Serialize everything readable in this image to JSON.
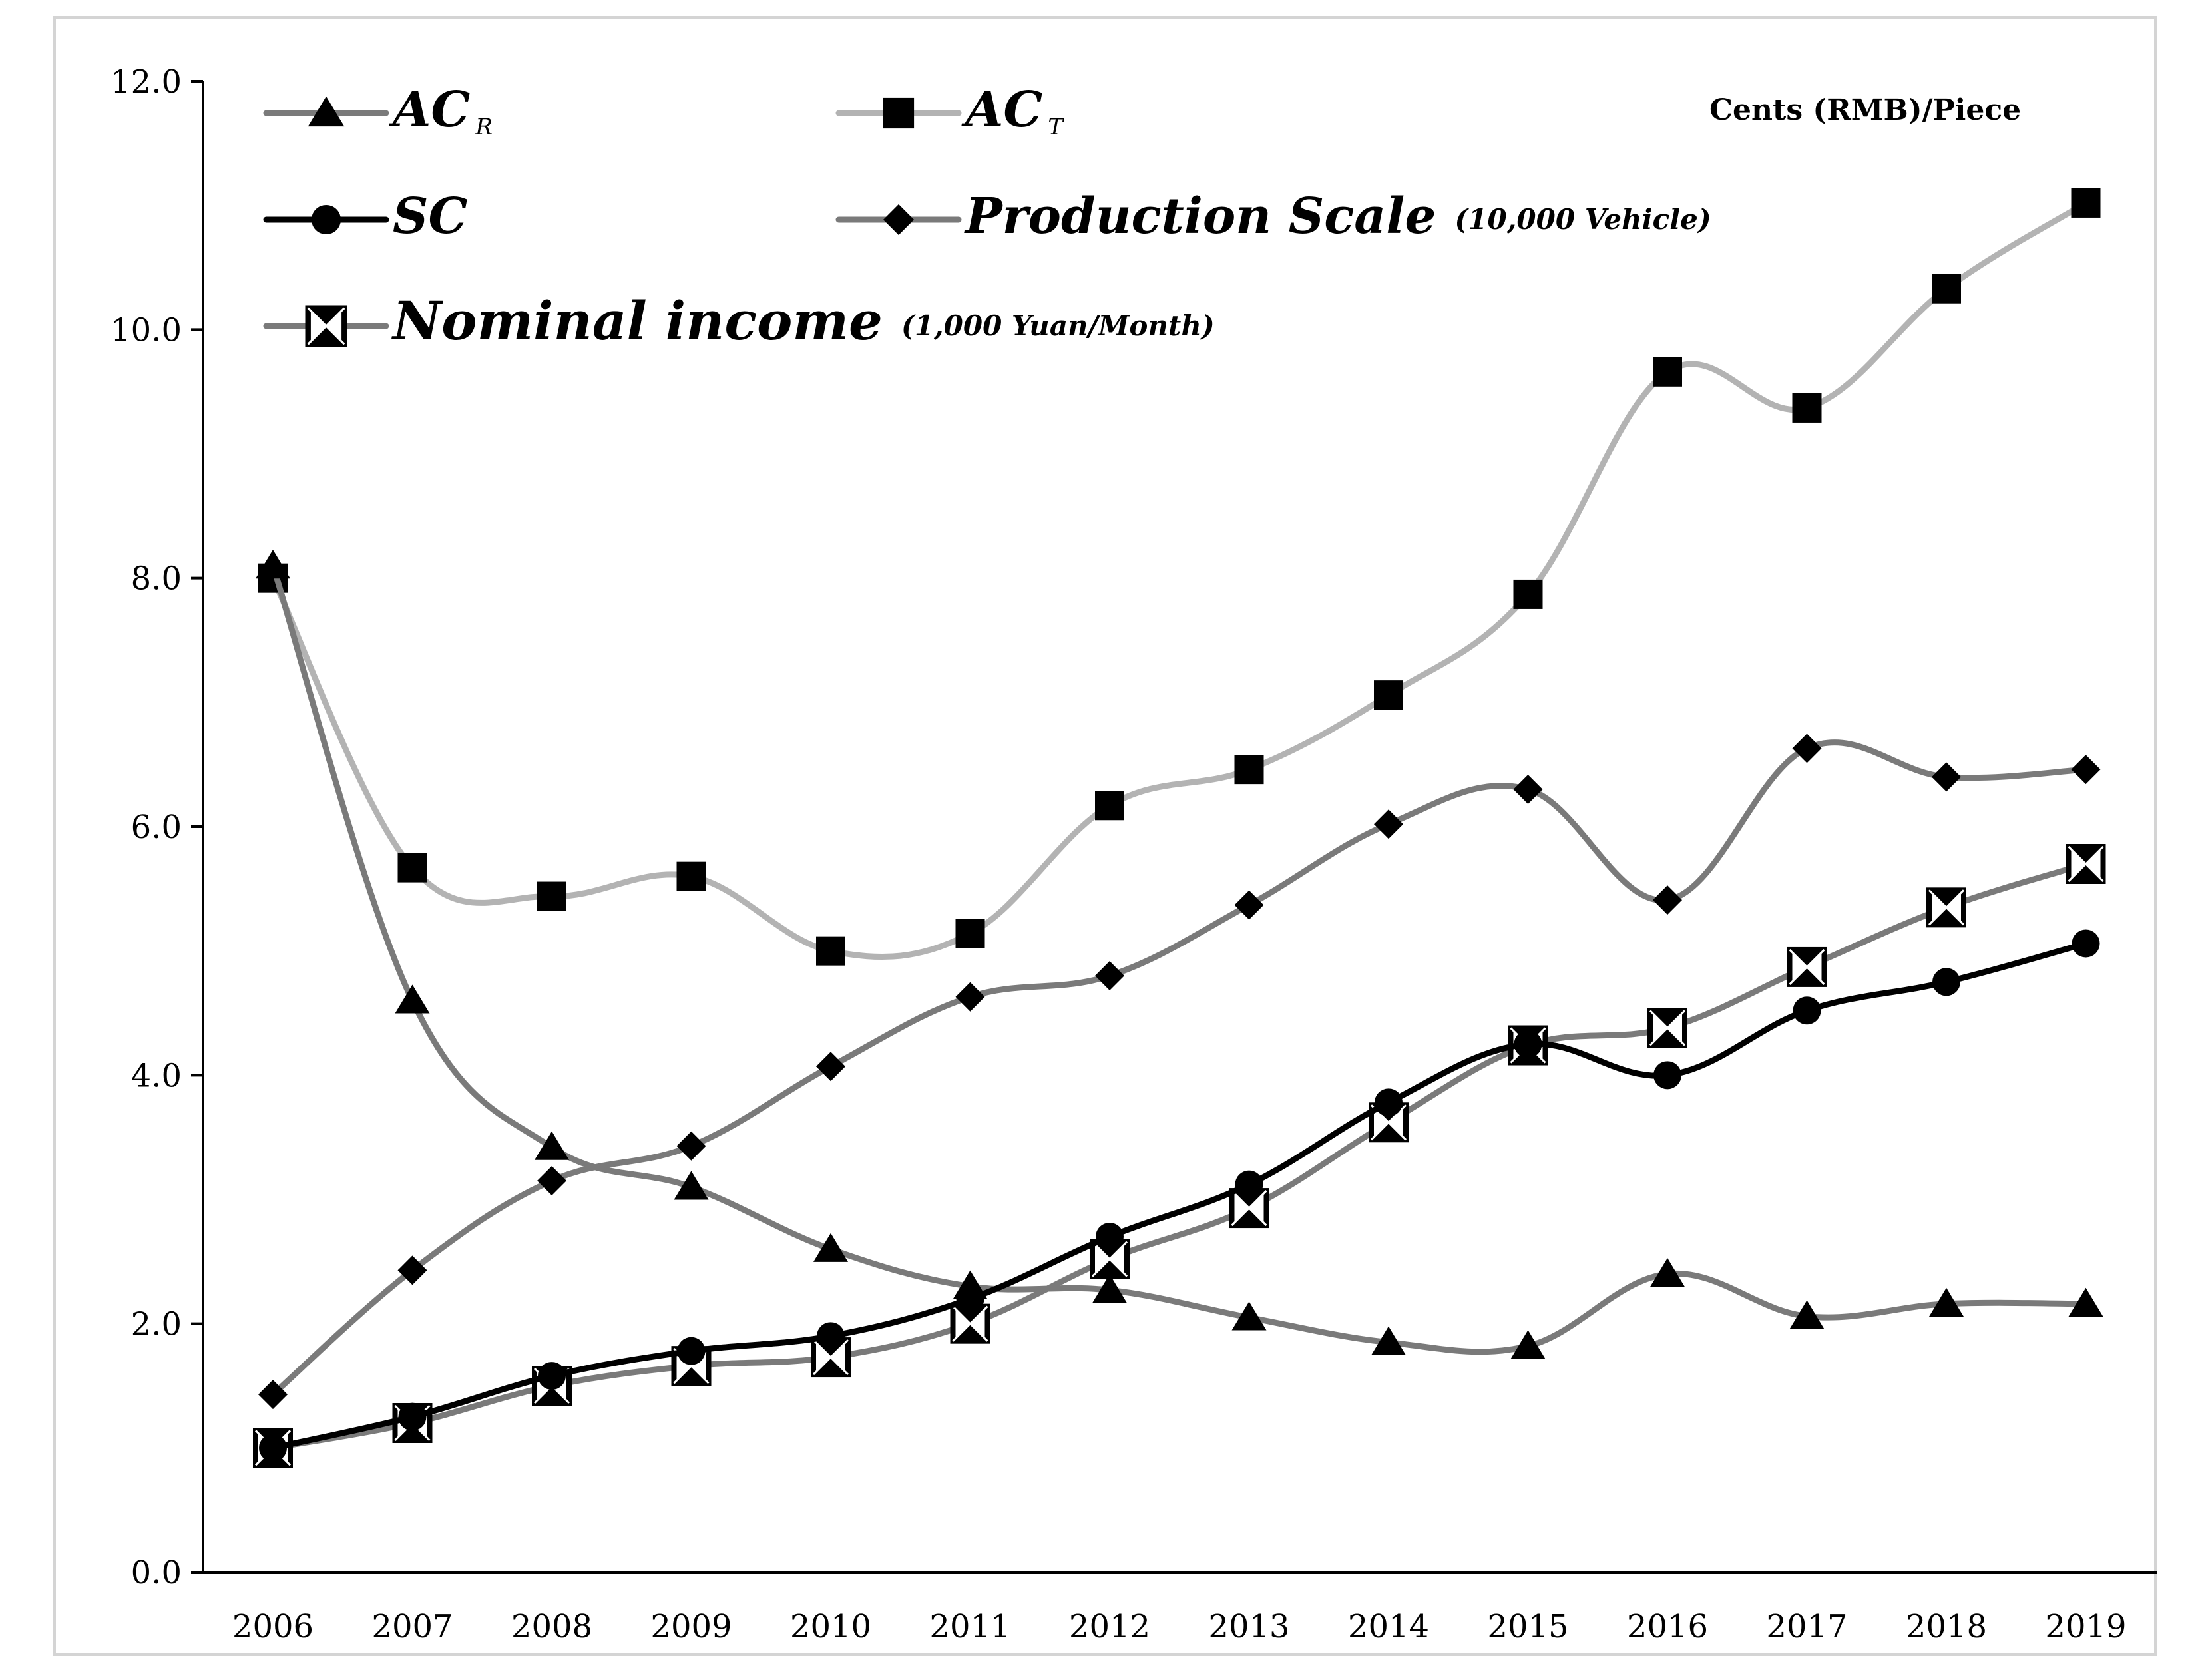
{
  "chart_data": {
    "type": "line",
    "title": "",
    "unit_label": "Cents (RMB)/Piece",
    "xlabel": "",
    "ylabel": "",
    "ylim": [
      0,
      12
    ],
    "yticks": [
      "0.0",
      "2.0",
      "4.0",
      "6.0",
      "8.0",
      "10.0",
      "12.0"
    ],
    "ytick_values": [
      0,
      2,
      4,
      6,
      8,
      10,
      12
    ],
    "categories": [
      "2006",
      "2007",
      "2008",
      "2009",
      "2010",
      "2011",
      "2012",
      "2013",
      "2014",
      "2015",
      "2016",
      "2017",
      "2018",
      "2019"
    ],
    "grid": false,
    "legend_position": "top-left",
    "series": [
      {
        "key": "acr",
        "name": "AC",
        "subscript": "R",
        "suffix": "",
        "marker": "triangle",
        "color": "#7a7a7a",
        "values": [
          8.1,
          4.6,
          3.42,
          3.1,
          2.6,
          2.3,
          2.27,
          2.05,
          1.85,
          1.82,
          2.4,
          2.06,
          2.16,
          2.16
        ]
      },
      {
        "key": "act",
        "name": "AC",
        "subscript": "T",
        "suffix": "",
        "marker": "square",
        "color": "#b3b3b3",
        "values": [
          8.0,
          5.67,
          5.44,
          5.6,
          5.0,
          5.14,
          6.17,
          6.46,
          7.06,
          7.87,
          9.66,
          9.37,
          10.33,
          11.02
        ]
      },
      {
        "key": "sc",
        "name": "SC",
        "subscript": "",
        "suffix": "",
        "marker": "circle",
        "color": "#000000",
        "values": [
          1.0,
          1.25,
          1.58,
          1.78,
          1.9,
          2.2,
          2.7,
          3.12,
          3.78,
          4.25,
          4.0,
          4.52,
          4.75,
          5.06
        ]
      },
      {
        "key": "ps",
        "name": "Production Scale",
        "subscript": "",
        "suffix": "(10,000 Vehicle)",
        "marker": "diamond",
        "color": "#7a7a7a",
        "values": [
          1.43,
          2.43,
          3.15,
          3.43,
          4.07,
          4.63,
          4.8,
          5.37,
          6.02,
          6.3,
          5.41,
          6.63,
          6.4,
          6.46
        ]
      },
      {
        "key": "ni",
        "name": "Nominal income",
        "subscript": "",
        "suffix": "(1,000  Yuan/Month)",
        "marker": "boxx",
        "color": "#7a7a7a",
        "values": [
          1.0,
          1.2,
          1.5,
          1.66,
          1.73,
          2.0,
          2.52,
          2.93,
          3.62,
          4.24,
          4.38,
          4.87,
          5.35,
          5.7
        ]
      }
    ]
  }
}
